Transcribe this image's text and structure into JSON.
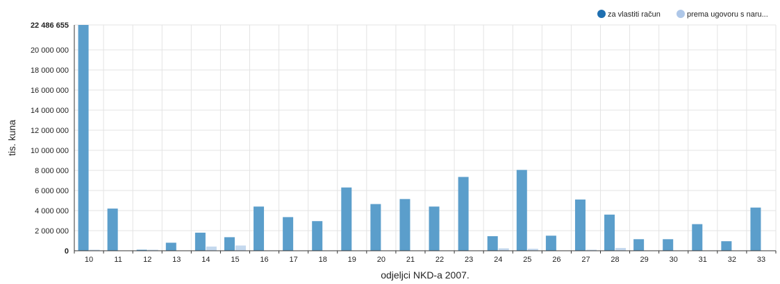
{
  "chart_data": {
    "type": "bar",
    "categories": [
      "10",
      "11",
      "12",
      "13",
      "14",
      "15",
      "16",
      "17",
      "18",
      "19",
      "20",
      "21",
      "22",
      "23",
      "24",
      "25",
      "26",
      "27",
      "28",
      "29",
      "30",
      "31",
      "32",
      "33"
    ],
    "series": [
      {
        "name": "za vlastiti račun",
        "color": "#5b9ecb",
        "legend_color": "#1f6fb0",
        "values": [
          22486655,
          4200000,
          100000,
          800000,
          1800000,
          1350000,
          4400000,
          3350000,
          2950000,
          6300000,
          4650000,
          5150000,
          4400000,
          7350000,
          1450000,
          8050000,
          1500000,
          5100000,
          3600000,
          1150000,
          1150000,
          2650000,
          950000,
          4300000
        ]
      },
      {
        "name": "prema ugovoru s naru...",
        "color": "#c5d9ee",
        "legend_color": "#aec7e8",
        "values": [
          100000,
          20000,
          100000,
          20000,
          420000,
          520000,
          30000,
          20000,
          20000,
          20000,
          20000,
          20000,
          20000,
          20000,
          240000,
          200000,
          20000,
          100000,
          280000,
          20000,
          20000,
          20000,
          20000,
          20000
        ]
      }
    ],
    "yticks": [
      {
        "value": 0,
        "label": "0"
      },
      {
        "value": 2000000,
        "label": "2 000 000"
      },
      {
        "value": 4000000,
        "label": "4 000 000"
      },
      {
        "value": 6000000,
        "label": "6 000 000"
      },
      {
        "value": 8000000,
        "label": "8 000 000"
      },
      {
        "value": 10000000,
        "label": "10 000 000"
      },
      {
        "value": 12000000,
        "label": "12 000 000"
      },
      {
        "value": 14000000,
        "label": "14 000 000"
      },
      {
        "value": 16000000,
        "label": "16 000 000"
      },
      {
        "value": 18000000,
        "label": "18 000 000"
      },
      {
        "value": 20000000,
        "label": "20 000 000"
      },
      {
        "value": 22486655,
        "label": "22 486 655"
      }
    ],
    "ylim": [
      0,
      22486655
    ],
    "xlabel": "odjeljci NKD-a 2007.",
    "ylabel": "tis. kuna",
    "grid": true,
    "legend_position": "top-right"
  }
}
